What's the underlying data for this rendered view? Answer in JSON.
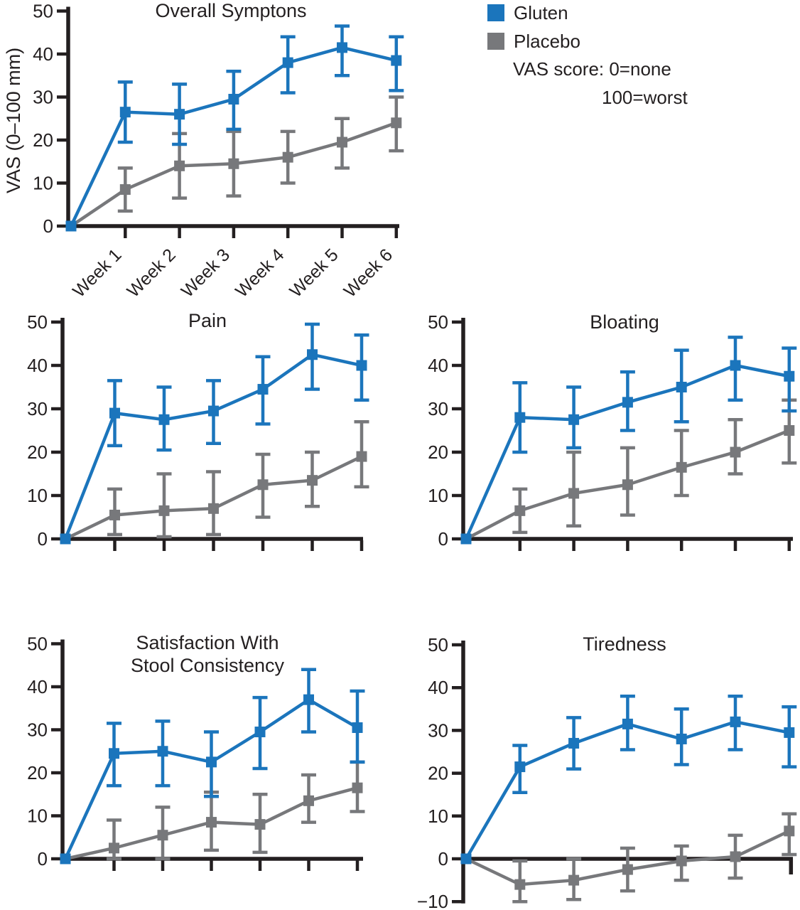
{
  "figure": {
    "y_axis_label": "VAS (0–100 mm)",
    "axis_color": "#231f20",
    "legend": {
      "items": [
        {
          "label": "Gluten",
          "color": "#1b75bc"
        },
        {
          "label": "Placebo",
          "color": "#77787b"
        }
      ],
      "note_line1": "VAS score: 0=none",
      "note_line2": "100=worst"
    }
  },
  "chart_data": [
    {
      "type": "line",
      "title_lines": [
        "Overall Symptons"
      ],
      "x_categories": [
        "Week 1",
        "Week 2",
        "Week 3",
        "Week 4",
        "Week 5",
        "Week 6"
      ],
      "x_tick_labels_visible": true,
      "ylim": [
        0,
        50
      ],
      "yticks": [
        0,
        10,
        20,
        30,
        40,
        50
      ],
      "grid": false,
      "series": [
        {
          "name": "Gluten",
          "color": "#1b75bc",
          "values": [
            0,
            26.5,
            26,
            29.5,
            38,
            41.5,
            38.5
          ],
          "err_low": [
            null,
            19.5,
            19,
            22.5,
            31,
            35,
            31.5
          ],
          "err_high": [
            null,
            33.5,
            33,
            36,
            44,
            46.5,
            44
          ]
        },
        {
          "name": "Placebo",
          "color": "#77787b",
          "values": [
            0,
            8.5,
            14,
            14.5,
            16,
            19.5,
            24
          ],
          "err_low": [
            null,
            3.5,
            6.5,
            7,
            10,
            13.5,
            17.5
          ],
          "err_high": [
            null,
            13.5,
            21.5,
            22,
            22,
            25,
            30
          ]
        }
      ]
    },
    {
      "type": "line",
      "title_lines": [
        "Pain"
      ],
      "x_categories": [
        "Week 1",
        "Week 2",
        "Week 3",
        "Week 4",
        "Week 5",
        "Week 6"
      ],
      "x_tick_labels_visible": false,
      "ylim": [
        0,
        50
      ],
      "yticks": [
        0,
        10,
        20,
        30,
        40,
        50
      ],
      "grid": false,
      "series": [
        {
          "name": "Gluten",
          "color": "#1b75bc",
          "values": [
            0,
            29,
            27.5,
            29.5,
            34.5,
            42.5,
            40
          ],
          "err_low": [
            null,
            21.5,
            20.5,
            22,
            26.5,
            34.5,
            32
          ],
          "err_high": [
            null,
            36.5,
            35,
            36.5,
            42,
            49.5,
            47
          ]
        },
        {
          "name": "Placebo",
          "color": "#77787b",
          "values": [
            0,
            5.5,
            6.5,
            7,
            12.5,
            13.5,
            19
          ],
          "err_low": [
            null,
            1,
            0.5,
            1,
            5,
            7.5,
            12
          ],
          "err_high": [
            null,
            11.5,
            15,
            15.5,
            19.5,
            20,
            27
          ]
        }
      ]
    },
    {
      "type": "line",
      "title_lines": [
        "Bloating"
      ],
      "x_categories": [
        "Week 1",
        "Week 2",
        "Week 3",
        "Week 4",
        "Week 5",
        "Week 6"
      ],
      "x_tick_labels_visible": false,
      "ylim": [
        0,
        50
      ],
      "yticks": [
        0,
        10,
        20,
        30,
        40,
        50
      ],
      "grid": false,
      "series": [
        {
          "name": "Gluten",
          "color": "#1b75bc",
          "values": [
            0,
            28,
            27.5,
            31.5,
            35,
            40,
            37.5
          ],
          "err_low": [
            null,
            20,
            21,
            25,
            27,
            32,
            29.5
          ],
          "err_high": [
            null,
            36,
            35,
            38.5,
            43.5,
            46.5,
            44
          ]
        },
        {
          "name": "Placebo",
          "color": "#77787b",
          "values": [
            0,
            6.5,
            10.5,
            12.5,
            16.5,
            20,
            25
          ],
          "err_low": [
            null,
            1.5,
            3,
            5.5,
            10,
            15,
            17.5
          ],
          "err_high": [
            null,
            11.5,
            20,
            21,
            25,
            27.5,
            32
          ]
        }
      ]
    },
    {
      "type": "line",
      "title_lines": [
        "Satisfaction With",
        "Stool Consistency"
      ],
      "x_categories": [
        "Week 1",
        "Week 2",
        "Week 3",
        "Week 4",
        "Week 5",
        "Week 6"
      ],
      "x_tick_labels_visible": false,
      "ylim": [
        0,
        50
      ],
      "yticks": [
        0,
        10,
        20,
        30,
        40,
        50
      ],
      "grid": false,
      "series": [
        {
          "name": "Gluten",
          "color": "#1b75bc",
          "values": [
            0,
            24.5,
            25,
            22.5,
            29.5,
            37,
            30.5
          ],
          "err_low": [
            null,
            17,
            17,
            14.5,
            21,
            29.5,
            22.5
          ],
          "err_high": [
            null,
            31.5,
            32,
            29.5,
            37.5,
            44,
            39
          ]
        },
        {
          "name": "Placebo",
          "color": "#77787b",
          "values": [
            0,
            2.5,
            5.5,
            8.5,
            8,
            13.5,
            16.5
          ],
          "err_low": [
            null,
            0,
            0,
            2,
            1.5,
            8.5,
            11
          ],
          "err_high": [
            null,
            9,
            12,
            15.5,
            15,
            19.5,
            22.5
          ]
        }
      ]
    },
    {
      "type": "line",
      "title_lines": [
        "Tiredness"
      ],
      "x_categories": [
        "Week 1",
        "Week 2",
        "Week 3",
        "Week 4",
        "Week 5",
        "Week 6"
      ],
      "x_tick_labels_visible": false,
      "ylim": [
        -10,
        50
      ],
      "yticks": [
        -10,
        0,
        10,
        20,
        30,
        40,
        50
      ],
      "grid": false,
      "series": [
        {
          "name": "Gluten",
          "color": "#1b75bc",
          "values": [
            0,
            21.5,
            27,
            31.5,
            28,
            32,
            29.5
          ],
          "err_low": [
            null,
            15.5,
            21,
            25.5,
            22,
            25.5,
            21.5
          ],
          "err_high": [
            null,
            26.5,
            33,
            38,
            35,
            38,
            35.5
          ]
        },
        {
          "name": "Placebo",
          "color": "#77787b",
          "values": [
            0,
            -6,
            -5,
            -2.5,
            -0.5,
            0.5,
            6.5
          ],
          "err_low": [
            null,
            -10,
            -9.5,
            -7.5,
            -5,
            -4.5,
            1
          ],
          "err_high": [
            null,
            -0.5,
            0,
            2.5,
            3,
            5.5,
            10.5
          ]
        }
      ]
    }
  ]
}
